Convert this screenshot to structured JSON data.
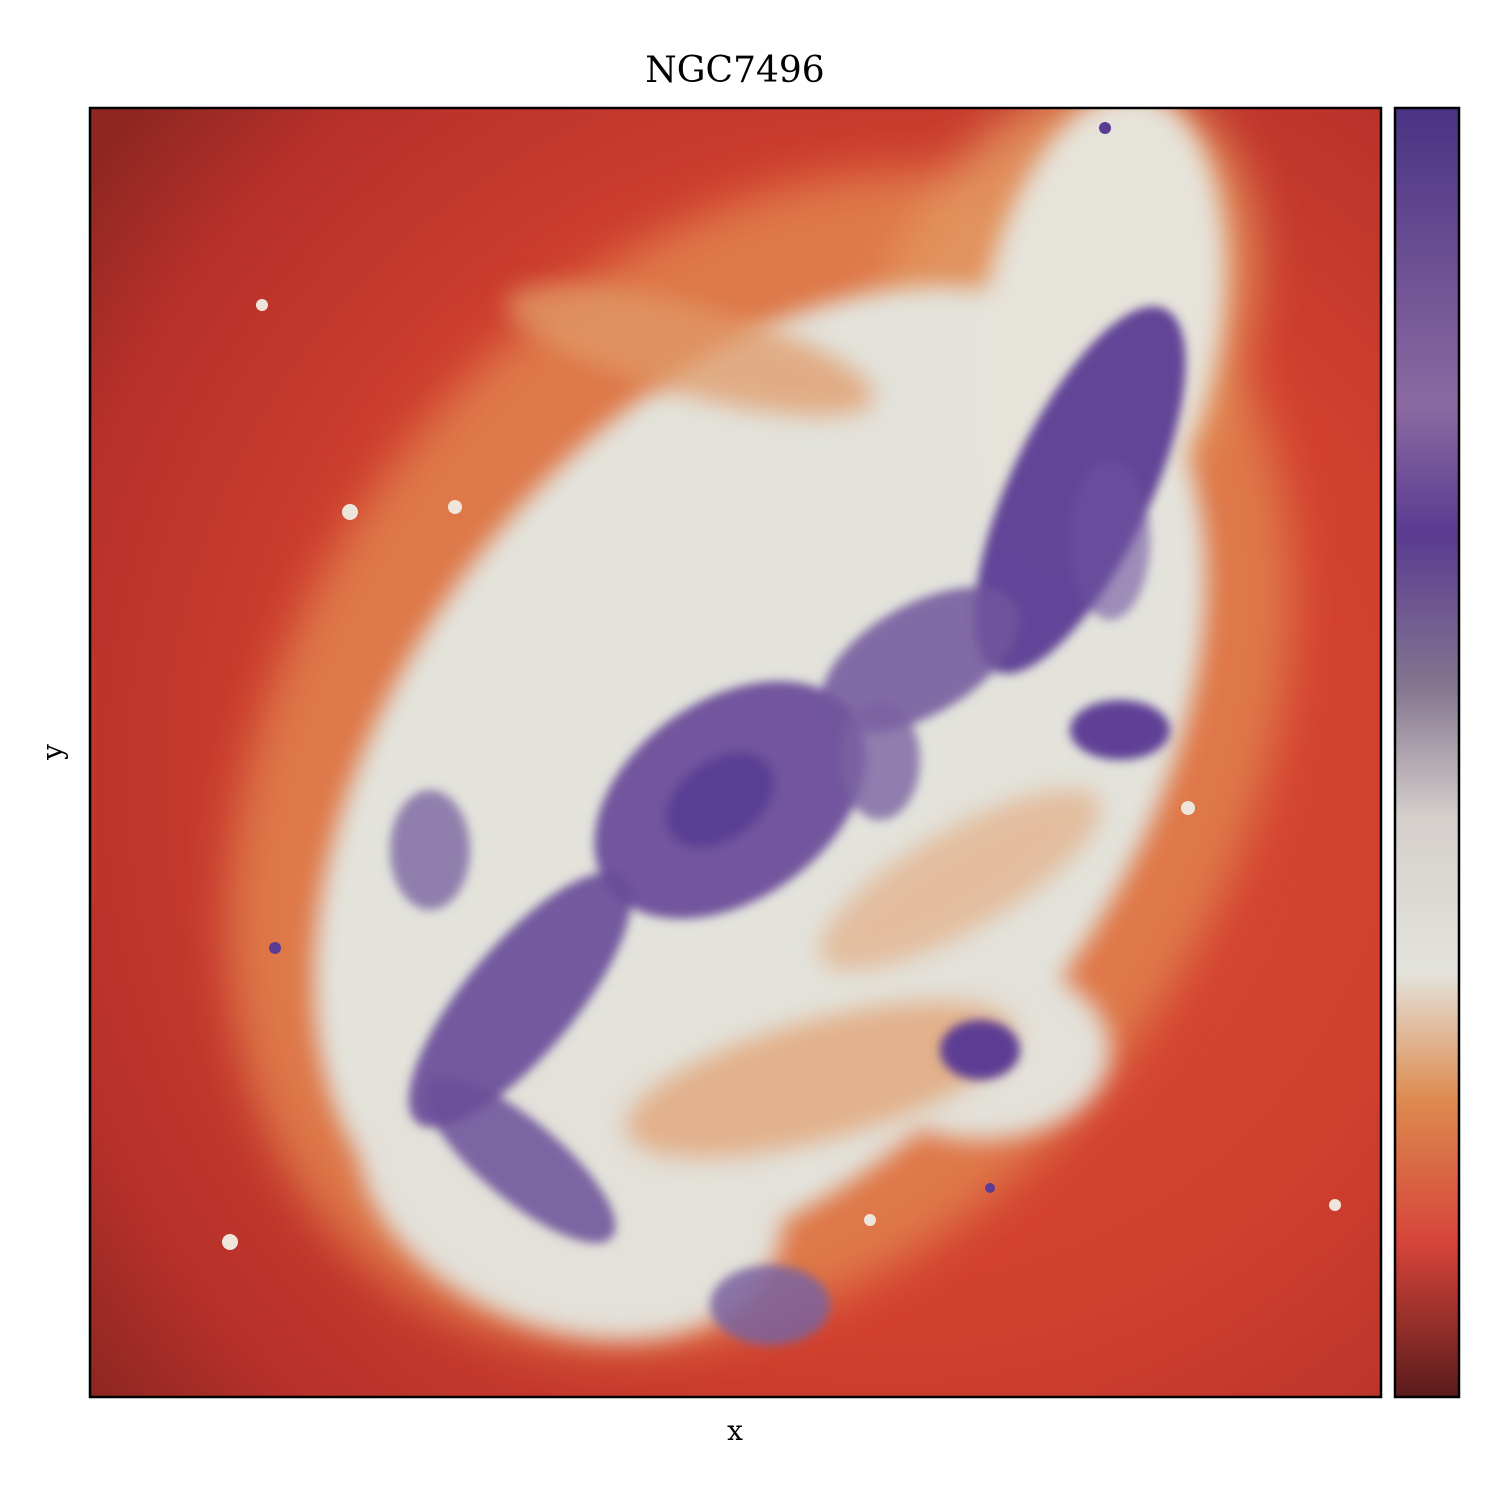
{
  "chart_data": {
    "type": "heatmap",
    "title": "NGC7496",
    "xlabel": "x",
    "ylabel": "y",
    "x_ticks": [],
    "y_ticks": [],
    "colorbar": {
      "tick_labels": [],
      "colormap_stops": [
        "#5a1c1c",
        "#d6443a",
        "#dd8a4f",
        "#e3e3dc",
        "#d5cfcc",
        "#84768f",
        "#5a3b91",
        "#8b6aa1",
        "#4a3384"
      ]
    },
    "description_colors": {
      "outer": "#c43a2e",
      "arm_orange": "#dd8a4f",
      "disk_light": "#e3e3dc",
      "arm_purple": "#5f3f96"
    }
  }
}
